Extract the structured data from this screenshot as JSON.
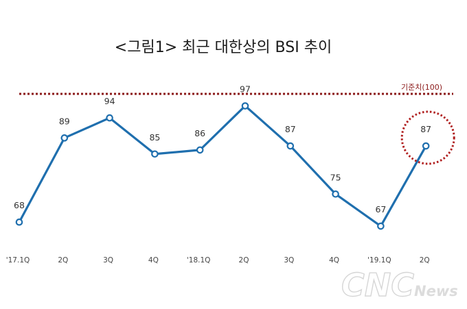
{
  "chart_data": {
    "type": "line",
    "title": "<그림1> 최근 대한상의 BSI 추이",
    "categories": [
      "'17.1Q",
      "2Q",
      "3Q",
      "4Q",
      "'18.1Q",
      "2Q",
      "3Q",
      "4Q",
      "'19.1Q",
      "2Q"
    ],
    "series": [
      {
        "values": [
          68,
          89,
          94,
          85,
          86,
          97,
          87,
          75,
          67,
          87
        ]
      }
    ],
    "reference_line": {
      "label": "기준치(100)",
      "value": 100
    },
    "highlight": {
      "category_index": 9,
      "style": "dotted circle"
    },
    "ylim": [
      60,
      100
    ],
    "grid": false,
    "xlabel": "",
    "ylabel": ""
  },
  "colors": {
    "line": "#1f6fae",
    "reference": "#8b1a1a",
    "highlight": "#b01e1e"
  },
  "watermark": {
    "main": "CNC",
    "sub": "News"
  }
}
